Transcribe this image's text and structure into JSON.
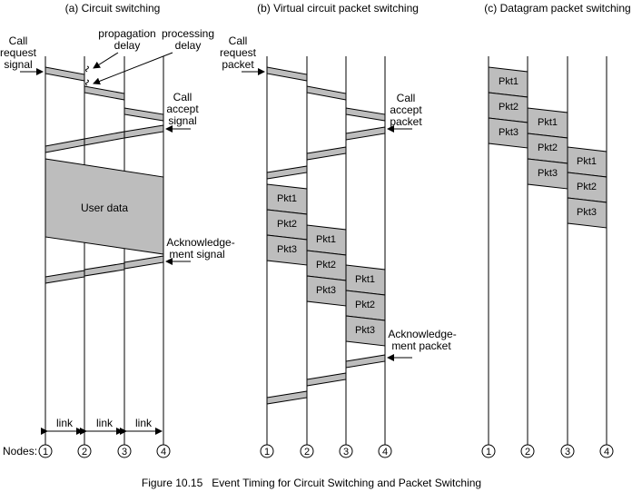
{
  "titles": {
    "a": "(a) Circuit switching",
    "b": "(b) Virtual circuit packet switching",
    "c": "(c) Datagram packet switching"
  },
  "labels": {
    "call_request_signal": [
      "Call",
      "request",
      "signal"
    ],
    "propagation_delay": [
      "propagation",
      "delay"
    ],
    "processing_delay": [
      "processing",
      "delay"
    ],
    "call_accept_signal": [
      "Call",
      "accept",
      "signal"
    ],
    "user_data": "User data",
    "ack_signal": [
      "Acknowledge-",
      "ment signal"
    ],
    "call_request_packet": [
      "Call",
      "request",
      "packet"
    ],
    "call_accept_packet": [
      "Call",
      "accept",
      "packet"
    ],
    "ack_packet": [
      "Acknowledge-",
      "ment packet"
    ],
    "link": "link",
    "nodes": "Nodes:",
    "node_numbers": [
      "1",
      "2",
      "3",
      "4"
    ],
    "pkt1": "Pkt1",
    "pkt2": "Pkt2",
    "pkt3": "Pkt3"
  },
  "caption": "Figure 10.15   Event Timing for Circuit Switching and Packet Switching",
  "colors": {
    "fill": "#bdbdbd",
    "line": "#000000"
  }
}
